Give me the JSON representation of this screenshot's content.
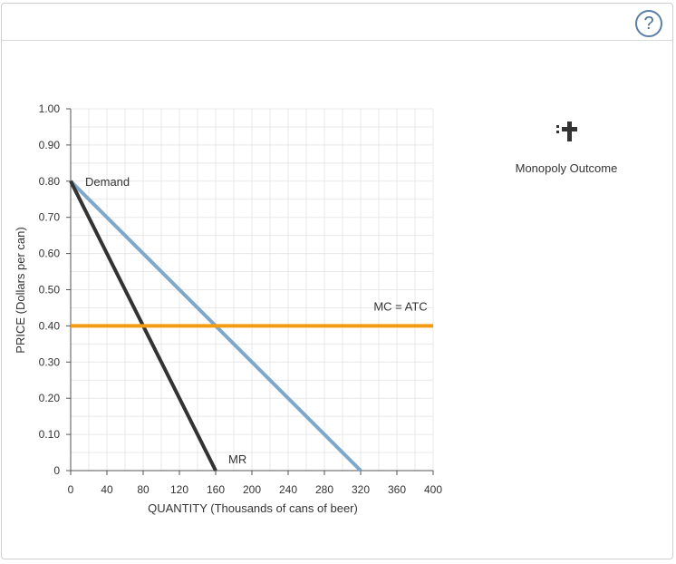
{
  "help": {
    "label": "?"
  },
  "palette": {
    "tool_label": "Monopoly Outcome",
    "icon": "point-marker-icon"
  },
  "colors": {
    "demand": "#7ea7cc",
    "mr": "#333333",
    "mc_atc": "#f39c12",
    "grid": "#e8e8e8",
    "axis": "#555555"
  },
  "chart_data": {
    "type": "line",
    "xlabel": "QUANTITY (Thousands of cans of beer)",
    "ylabel": "PRICE (Dollars per can)",
    "xlim": [
      0,
      400
    ],
    "ylim": [
      0,
      1.0
    ],
    "x_ticks": [
      0,
      40,
      80,
      120,
      160,
      200,
      240,
      280,
      320,
      360,
      400
    ],
    "x_tick_labels": [
      "0",
      "40",
      "80",
      "120",
      "160",
      "200",
      "240",
      "280",
      "320",
      "360",
      "400"
    ],
    "y_ticks": [
      0,
      0.1,
      0.2,
      0.3,
      0.4,
      0.5,
      0.6,
      0.7,
      0.8,
      0.9,
      1.0
    ],
    "y_tick_labels": [
      "0",
      "0.10",
      "0.20",
      "0.30",
      "0.40",
      "0.50",
      "0.60",
      "0.70",
      "0.80",
      "0.90",
      "1.00"
    ],
    "grid": true,
    "series": [
      {
        "name": "Demand",
        "color": "#7ea7cc",
        "points": [
          [
            0,
            0.8
          ],
          [
            320,
            0
          ]
        ]
      },
      {
        "name": "MR",
        "color": "#333333",
        "points": [
          [
            0,
            0.8
          ],
          [
            160,
            0
          ]
        ]
      },
      {
        "name": "MC = ATC",
        "color": "#f39c12",
        "points": [
          [
            0,
            0.4
          ],
          [
            400,
            0.4
          ]
        ]
      }
    ]
  }
}
